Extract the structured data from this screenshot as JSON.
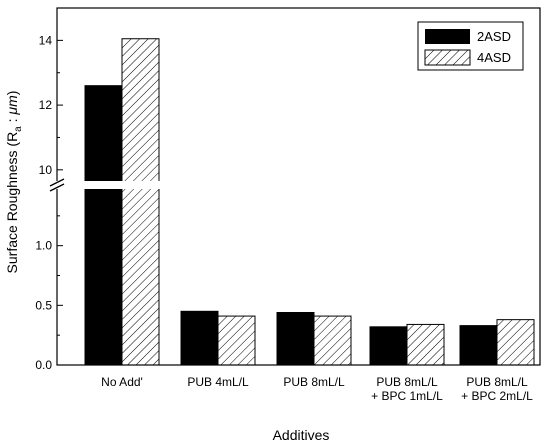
{
  "chart_data": {
    "type": "bar",
    "xlabel": "Additives",
    "ylabel_main": "Surface Roughness (R",
    "ylabel_sub": "a",
    "ylabel_tail": " : ",
    "ylabel_unit": "μm",
    "ylabel_close": ")",
    "categories": [
      [
        "No Add'"
      ],
      [
        "PUB 4mL/L"
      ],
      [
        "PUB 8mL/L"
      ],
      [
        "PUB 8mL/L",
        "+ BPC 1mL/L"
      ],
      [
        "PUB 8mL/L",
        "+ BPC 2mL/L"
      ]
    ],
    "series": [
      {
        "name": "2ASD",
        "values": [
          12.6,
          0.45,
          0.44,
          0.32,
          0.33
        ],
        "color": "#000000",
        "pattern": "solid"
      },
      {
        "name": "4ASD",
        "values": [
          14.05,
          0.41,
          0.41,
          0.34,
          0.38
        ],
        "color": "#ffffff",
        "pattern": "hatch"
      }
    ],
    "axis_break": {
      "lower_range": [
        0.0,
        1.5
      ],
      "upper_range": [
        9.5,
        15.0
      ],
      "lower_ticks": [
        "0.0",
        "0.5",
        "1.0"
      ],
      "upper_ticks": [
        "10",
        "12",
        "14"
      ]
    },
    "legend_position": "top-right",
    "grid": false
  }
}
